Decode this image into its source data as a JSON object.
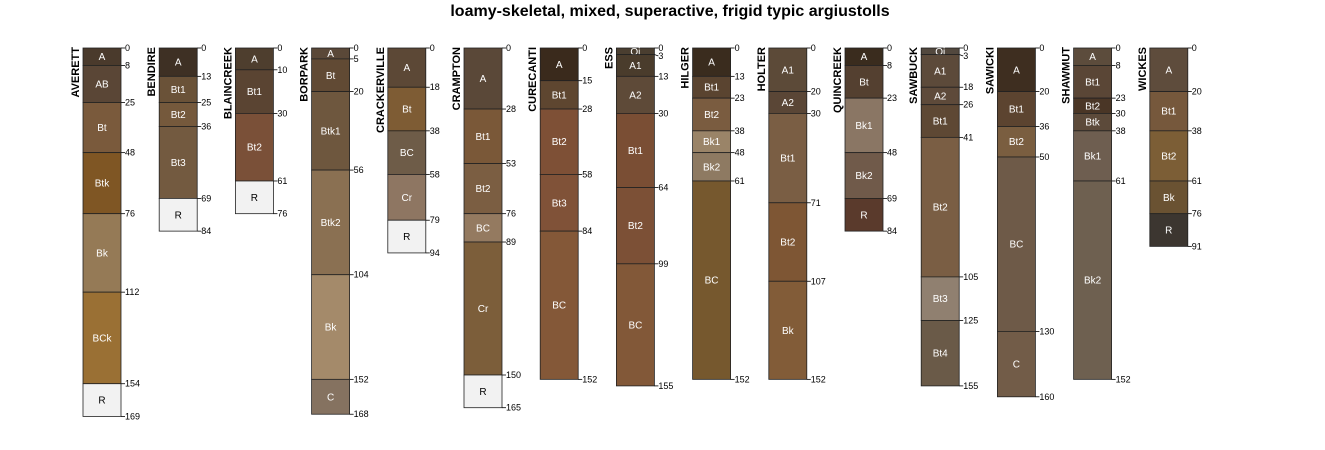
{
  "title": "loamy-skeletal, mixed, superactive, frigid typic argiustolls",
  "chart_data": {
    "type": "soil_profile_sketch",
    "title": "loamy-skeletal, mixed, superactive, frigid typic argiustolls",
    "depth_units": "cm",
    "depth_range": [
      0,
      169
    ],
    "profiles": [
      {
        "name": "AVERETT",
        "horizons": [
          {
            "name": "A",
            "top": 0,
            "bottom": 8,
            "color": "#4a3a2c"
          },
          {
            "name": "AB",
            "top": 8,
            "bottom": 25,
            "color": "#5a4636"
          },
          {
            "name": "Bt",
            "top": 25,
            "bottom": 48,
            "color": "#7a5a3c"
          },
          {
            "name": "Btk",
            "top": 48,
            "bottom": 76,
            "color": "#7f5624"
          },
          {
            "name": "Bk",
            "top": 76,
            "bottom": 112,
            "color": "#957a56"
          },
          {
            "name": "BCk",
            "top": 112,
            "bottom": 154,
            "color": "#9a7034"
          },
          {
            "name": "R",
            "top": 154,
            "bottom": 169,
            "color": "#f2f2f2"
          }
        ]
      },
      {
        "name": "BENDIRE",
        "horizons": [
          {
            "name": "A",
            "top": 0,
            "bottom": 13,
            "color": "#3e3024"
          },
          {
            "name": "Bt1",
            "top": 13,
            "bottom": 25,
            "color": "#6a5238"
          },
          {
            "name": "Bt2",
            "top": 25,
            "bottom": 36,
            "color": "#75593c"
          },
          {
            "name": "Bt3",
            "top": 36,
            "bottom": 69,
            "color": "#735a40"
          },
          {
            "name": "R",
            "top": 69,
            "bottom": 84,
            "color": "#f2f2f2"
          }
        ]
      },
      {
        "name": "BLAINCREEK",
        "horizons": [
          {
            "name": "A",
            "top": 0,
            "bottom": 10,
            "color": "#4e3e2e"
          },
          {
            "name": "Bt1",
            "top": 10,
            "bottom": 30,
            "color": "#5a4432"
          },
          {
            "name": "Bt2",
            "top": 30,
            "bottom": 61,
            "color": "#7a5038"
          },
          {
            "name": "R",
            "top": 61,
            "bottom": 76,
            "color": "#f2f2f2"
          }
        ]
      },
      {
        "name": "BORPARK",
        "horizons": [
          {
            "name": "A",
            "top": 0,
            "bottom": 5,
            "color": "#5a4838"
          },
          {
            "name": "Bt",
            "top": 5,
            "bottom": 20,
            "color": "#614a34"
          },
          {
            "name": "Btk1",
            "top": 20,
            "bottom": 56,
            "color": "#6e573e"
          },
          {
            "name": "Btk2",
            "top": 56,
            "bottom": 104,
            "color": "#8a7052"
          },
          {
            "name": "Bk",
            "top": 104,
            "bottom": 152,
            "color": "#a48a6a"
          },
          {
            "name": "C",
            "top": 152,
            "bottom": 168,
            "color": "#857260"
          }
        ]
      },
      {
        "name": "CRACKERVILLE",
        "horizons": [
          {
            "name": "A",
            "top": 0,
            "bottom": 18,
            "color": "#5c4836"
          },
          {
            "name": "Bt",
            "top": 18,
            "bottom": 38,
            "color": "#7e5c34"
          },
          {
            "name": "BC",
            "top": 38,
            "bottom": 58,
            "color": "#6e5c48"
          },
          {
            "name": "Cr",
            "top": 58,
            "bottom": 79,
            "color": "#8e7662"
          },
          {
            "name": "R",
            "top": 79,
            "bottom": 94,
            "color": "#f2f2f2"
          }
        ]
      },
      {
        "name": "CRAMPTON",
        "horizons": [
          {
            "name": "A",
            "top": 0,
            "bottom": 28,
            "color": "#5a4838"
          },
          {
            "name": "Bt1",
            "top": 28,
            "bottom": 53,
            "color": "#7a5838"
          },
          {
            "name": "Bt2",
            "top": 53,
            "bottom": 76,
            "color": "#7b5e42"
          },
          {
            "name": "BC",
            "top": 76,
            "bottom": 89,
            "color": "#947a60"
          },
          {
            "name": "Cr",
            "top": 89,
            "bottom": 150,
            "color": "#7c5e3a"
          },
          {
            "name": "R",
            "top": 150,
            "bottom": 165,
            "color": "#f2f2f2"
          }
        ]
      },
      {
        "name": "CURECANTI",
        "horizons": [
          {
            "name": "A",
            "top": 0,
            "bottom": 15,
            "color": "#3a2a1c"
          },
          {
            "name": "Bt1",
            "top": 15,
            "bottom": 28,
            "color": "#5e4630"
          },
          {
            "name": "Bt2",
            "top": 28,
            "bottom": 58,
            "color": "#7e5036"
          },
          {
            "name": "Bt3",
            "top": 58,
            "bottom": 84,
            "color": "#805238"
          },
          {
            "name": "BC",
            "top": 84,
            "bottom": 152,
            "color": "#845838"
          }
        ]
      },
      {
        "name": "ESS",
        "horizons": [
          {
            "name": "Oi",
            "top": 0,
            "bottom": 3,
            "color": "#4a3e30"
          },
          {
            "name": "A1",
            "top": 3,
            "bottom": 13,
            "color": "#4a3c2c"
          },
          {
            "name": "A2",
            "top": 13,
            "bottom": 30,
            "color": "#5e4a38"
          },
          {
            "name": "Bt1",
            "top": 30,
            "bottom": 64,
            "color": "#7a4e34"
          },
          {
            "name": "Bt2",
            "top": 64,
            "bottom": 99,
            "color": "#7c5036"
          },
          {
            "name": "BC",
            "top": 99,
            "bottom": 155,
            "color": "#825838"
          }
        ]
      },
      {
        "name": "HILGER",
        "horizons": [
          {
            "name": "A",
            "top": 0,
            "bottom": 13,
            "color": "#3a2c1e"
          },
          {
            "name": "Bt1",
            "top": 13,
            "bottom": 23,
            "color": "#5a4430"
          },
          {
            "name": "Bt2",
            "top": 23,
            "bottom": 38,
            "color": "#7a5c40"
          },
          {
            "name": "Bk1",
            "top": 38,
            "bottom": 48,
            "color": "#9a8468"
          },
          {
            "name": "Bk2",
            "top": 48,
            "bottom": 61,
            "color": "#8e7a62"
          },
          {
            "name": "BC",
            "top": 61,
            "bottom": 152,
            "color": "#76582e"
          }
        ]
      },
      {
        "name": "HOLTER",
        "horizons": [
          {
            "name": "A1",
            "top": 0,
            "bottom": 20,
            "color": "#5c4a38"
          },
          {
            "name": "A2",
            "top": 20,
            "bottom": 30,
            "color": "#5a4636"
          },
          {
            "name": "Bt1",
            "top": 30,
            "bottom": 71,
            "color": "#7a5e44"
          },
          {
            "name": "Bt2",
            "top": 71,
            "bottom": 107,
            "color": "#7e5634"
          },
          {
            "name": "Bk",
            "top": 107,
            "bottom": 152,
            "color": "#825c38"
          }
        ]
      },
      {
        "name": "QUINCREEK",
        "horizons": [
          {
            "name": "A",
            "top": 0,
            "bottom": 8,
            "color": "#3a2c1e"
          },
          {
            "name": "Bt",
            "top": 8,
            "bottom": 23,
            "color": "#544030"
          },
          {
            "name": "Bk1",
            "top": 23,
            "bottom": 48,
            "color": "#8a7664"
          },
          {
            "name": "Bk2",
            "top": 48,
            "bottom": 69,
            "color": "#705a4a"
          },
          {
            "name": "R",
            "top": 69,
            "bottom": 84,
            "color": "#5a3a2c"
          }
        ]
      },
      {
        "name": "SAWBUCK",
        "horizons": [
          {
            "name": "Oi",
            "top": 0,
            "bottom": 3,
            "color": "#52483e"
          },
          {
            "name": "A1",
            "top": 3,
            "bottom": 18,
            "color": "#5c4a3a"
          },
          {
            "name": "A2",
            "top": 18,
            "bottom": 26,
            "color": "#5e4a3a"
          },
          {
            "name": "Bt1",
            "top": 26,
            "bottom": 41,
            "color": "#5e4834"
          },
          {
            "name": "Bt2",
            "top": 41,
            "bottom": 105,
            "color": "#7a5e44"
          },
          {
            "name": "Bt3",
            "top": 105,
            "bottom": 125,
            "color": "#908070"
          },
          {
            "name": "Bt4",
            "top": 125,
            "bottom": 155,
            "color": "#6a5a48"
          }
        ]
      },
      {
        "name": "SAWICKI",
        "horizons": [
          {
            "name": "A",
            "top": 0,
            "bottom": 20,
            "color": "#3e2e20"
          },
          {
            "name": "Bt1",
            "top": 20,
            "bottom": 36,
            "color": "#5c4430"
          },
          {
            "name": "Bt2",
            "top": 36,
            "bottom": 50,
            "color": "#7a5e40"
          },
          {
            "name": "BC",
            "top": 50,
            "bottom": 130,
            "color": "#6e5a48"
          },
          {
            "name": "C",
            "top": 130,
            "bottom": 160,
            "color": "#725c48"
          }
        ]
      },
      {
        "name": "SHAWMUT",
        "horizons": [
          {
            "name": "A",
            "top": 0,
            "bottom": 8,
            "color": "#5c4c3c"
          },
          {
            "name": "Bt1",
            "top": 8,
            "bottom": 23,
            "color": "#5a4636"
          },
          {
            "name": "Bt2",
            "top": 23,
            "bottom": 30,
            "color": "#4a3626"
          },
          {
            "name": "Btk",
            "top": 30,
            "bottom": 38,
            "color": "#5c4a3a"
          },
          {
            "name": "Bk1",
            "top": 38,
            "bottom": 61,
            "color": "#6e5e50"
          },
          {
            "name": "Bk2",
            "top": 61,
            "bottom": 152,
            "color": "#6e6050"
          }
        ]
      },
      {
        "name": "WICKES",
        "horizons": [
          {
            "name": "A",
            "top": 0,
            "bottom": 20,
            "color": "#5e4c3c"
          },
          {
            "name": "Bt1",
            "top": 20,
            "bottom": 38,
            "color": "#76583c"
          },
          {
            "name": "Bt2",
            "top": 38,
            "bottom": 61,
            "color": "#7c5e36"
          },
          {
            "name": "Bk",
            "top": 61,
            "bottom": 76,
            "color": "#6a5232"
          },
          {
            "name": "R",
            "top": 76,
            "bottom": 91,
            "color": "#3c3630"
          }
        ]
      }
    ]
  }
}
